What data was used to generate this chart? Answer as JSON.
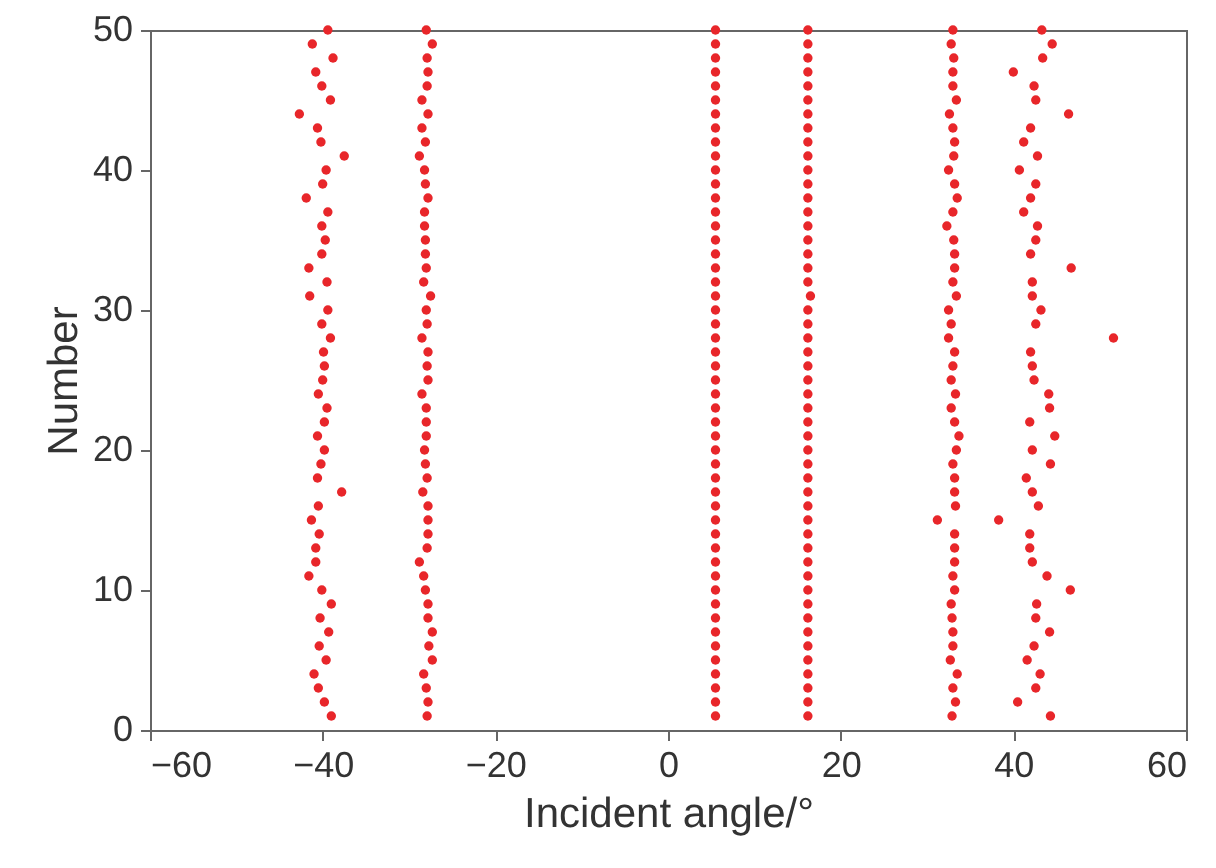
{
  "chart_data": {
    "type": "scatter",
    "xlabel": "Incident angle/°",
    "ylabel": "Number",
    "xlim": [
      -60,
      60
    ],
    "ylim": [
      0,
      50
    ],
    "xticks": [
      -60,
      -40,
      -20,
      0,
      20,
      40,
      60
    ],
    "yticks": [
      0,
      10,
      20,
      30,
      40,
      50
    ],
    "grid": false,
    "marker": "circle",
    "series": [
      {
        "color": "#e8262a",
        "x": [
          -39.0,
          -39.8,
          -40.5,
          -41.0,
          -39.6,
          -40.4,
          -39.3,
          -40.3,
          -39.0,
          -40.1,
          -41.6,
          -40.8,
          -40.8,
          -40.4,
          -41.3,
          -40.5,
          -37.8,
          -40.6,
          -40.2,
          -39.8,
          -40.6,
          -39.8,
          -39.5,
          -40.5,
          -40.0,
          -39.8,
          -39.9,
          -39.1,
          -40.1,
          -39.4,
          -41.5,
          -39.5,
          -41.6,
          -40.1,
          -39.7,
          -40.1,
          -39.4,
          -41.9,
          -40.0,
          -39.6,
          -37.5,
          -40.2,
          -40.6,
          -42.7,
          -39.1,
          -40.1,
          -40.8,
          -38.8,
          -41.2,
          -39.4
        ],
        "values": [
          1,
          2,
          3,
          4,
          5,
          6,
          7,
          8,
          9,
          10,
          11,
          12,
          13,
          14,
          15,
          16,
          17,
          18,
          19,
          20,
          21,
          22,
          23,
          24,
          25,
          26,
          27,
          28,
          29,
          30,
          31,
          32,
          33,
          34,
          35,
          36,
          37,
          38,
          39,
          40,
          41,
          42,
          43,
          44,
          45,
          46,
          47,
          48,
          49,
          50
        ]
      },
      {
        "color": "#e8262a",
        "x": [
          -27.9,
          -27.8,
          -28.0,
          -28.3,
          -27.3,
          -27.7,
          -27.3,
          -27.8,
          -27.8,
          -28.1,
          -28.3,
          -28.8,
          -27.9,
          -27.8,
          -27.8,
          -27.8,
          -28.4,
          -27.9,
          -28.1,
          -28.2,
          -28.0,
          -28.0,
          -28.0,
          -28.5,
          -27.8,
          -27.9,
          -27.8,
          -28.5,
          -27.9,
          -28.0,
          -27.5,
          -28.3,
          -28.0,
          -28.1,
          -28.1,
          -28.2,
          -28.2,
          -27.8,
          -28.1,
          -28.2,
          -28.8,
          -28.1,
          -28.5,
          -27.8,
          -28.5,
          -27.9,
          -27.8,
          -27.9,
          -27.3,
          -28.0
        ],
        "values": [
          1,
          2,
          3,
          4,
          5,
          6,
          7,
          8,
          9,
          10,
          11,
          12,
          13,
          14,
          15,
          16,
          17,
          18,
          19,
          20,
          21,
          22,
          23,
          24,
          25,
          26,
          27,
          28,
          29,
          30,
          31,
          32,
          33,
          34,
          35,
          36,
          37,
          38,
          39,
          40,
          41,
          42,
          43,
          44,
          45,
          46,
          47,
          48,
          49,
          50
        ]
      },
      {
        "color": "#e8262a",
        "x": [
          5.5,
          5.5,
          5.5,
          5.5,
          5.5,
          5.5,
          5.5,
          5.5,
          5.5,
          5.5,
          5.5,
          5.5,
          5.5,
          5.5,
          5.5,
          5.5,
          5.5,
          5.5,
          5.5,
          5.5,
          5.5,
          5.5,
          5.5,
          5.5,
          5.5,
          5.5,
          5.5,
          5.5,
          5.5,
          5.5,
          5.5,
          5.5,
          5.5,
          5.5,
          5.5,
          5.5,
          5.5,
          5.5,
          5.5,
          5.5,
          5.5,
          5.5,
          5.5,
          5.5,
          5.5,
          5.5,
          5.5,
          5.5,
          5.5,
          5.5
        ],
        "values": [
          1,
          2,
          3,
          4,
          5,
          6,
          7,
          8,
          9,
          10,
          11,
          12,
          13,
          14,
          15,
          16,
          17,
          18,
          19,
          20,
          21,
          22,
          23,
          24,
          25,
          26,
          27,
          28,
          29,
          30,
          31,
          32,
          33,
          34,
          35,
          36,
          37,
          38,
          39,
          40,
          41,
          42,
          43,
          44,
          45,
          46,
          47,
          48,
          49,
          50
        ]
      },
      {
        "color": "#e8262a",
        "x": [
          16.2,
          16.2,
          16.2,
          16.2,
          16.2,
          16.2,
          16.2,
          16.2,
          16.2,
          16.2,
          16.2,
          16.2,
          16.2,
          16.2,
          16.2,
          16.2,
          16.2,
          16.2,
          16.2,
          16.2,
          16.2,
          16.2,
          16.2,
          16.2,
          16.2,
          16.2,
          16.2,
          16.2,
          16.2,
          16.2,
          16.5,
          16.2,
          16.2,
          16.2,
          16.2,
          16.2,
          16.2,
          16.2,
          16.2,
          16.2,
          16.2,
          16.2,
          16.2,
          16.2,
          16.2,
          16.2,
          16.2,
          16.2,
          16.2,
          16.2
        ],
        "values": [
          1,
          2,
          3,
          4,
          5,
          6,
          7,
          8,
          9,
          10,
          11,
          12,
          13,
          14,
          15,
          16,
          17,
          18,
          19,
          20,
          21,
          22,
          23,
          24,
          25,
          26,
          27,
          28,
          29,
          30,
          31,
          32,
          33,
          34,
          35,
          36,
          37,
          38,
          39,
          40,
          41,
          42,
          43,
          44,
          45,
          46,
          47,
          48,
          49,
          50
        ]
      },
      {
        "color": "#e8262a",
        "x": [
          32.9,
          33.3,
          33.0,
          33.5,
          32.7,
          33.0,
          33.0,
          32.9,
          32.8,
          33.2,
          33.0,
          33.2,
          33.2,
          33.2,
          31.2,
          33.3,
          33.2,
          33.2,
          33.0,
          33.4,
          33.7,
          33.2,
          32.8,
          33.3,
          32.8,
          33.0,
          33.2,
          32.5,
          32.8,
          32.5,
          33.4,
          33.0,
          33.2,
          33.2,
          33.1,
          32.3,
          33.0,
          33.5,
          33.2,
          32.5,
          33.1,
          33.2,
          33.0,
          32.6,
          33.4,
          33.0,
          33.0,
          33.1,
          32.8,
          33.0
        ],
        "values": [
          1,
          2,
          3,
          4,
          5,
          6,
          7,
          8,
          9,
          10,
          11,
          12,
          13,
          14,
          15,
          16,
          17,
          18,
          19,
          20,
          21,
          22,
          23,
          24,
          25,
          26,
          27,
          28,
          29,
          30,
          31,
          32,
          33,
          34,
          35,
          36,
          37,
          38,
          39,
          40,
          41,
          42,
          43,
          44,
          45,
          46,
          47,
          48,
          49,
          50
        ]
      },
      {
        "color": "#e8262a",
        "x": [
          44.3,
          40.5,
          42.6,
          43.1,
          41.6,
          42.4,
          44.2,
          42.6,
          42.7,
          46.6,
          43.9,
          42.2,
          41.9,
          41.9,
          38.3,
          42.9,
          42.2,
          41.5,
          44.3,
          42.2,
          44.8,
          41.9,
          44.2,
          44.1,
          42.4,
          42.2,
          42.0,
          51.6,
          42.6,
          43.2,
          42.2,
          42.2,
          46.7,
          42.0,
          42.6,
          42.8,
          41.2,
          42.0,
          42.6,
          40.7,
          42.8,
          41.2,
          42.0,
          46.4,
          42.6,
          42.4,
          40.0,
          43.4,
          44.5,
          43.3
        ],
        "values": [
          1,
          2,
          3,
          4,
          5,
          6,
          7,
          8,
          9,
          10,
          11,
          12,
          13,
          14,
          15,
          16,
          17,
          18,
          19,
          20,
          21,
          22,
          23,
          24,
          25,
          26,
          27,
          28,
          29,
          30,
          31,
          32,
          33,
          34,
          35,
          36,
          37,
          38,
          39,
          40,
          41,
          42,
          43,
          44,
          45,
          46,
          47,
          48,
          49,
          50
        ]
      }
    ]
  }
}
